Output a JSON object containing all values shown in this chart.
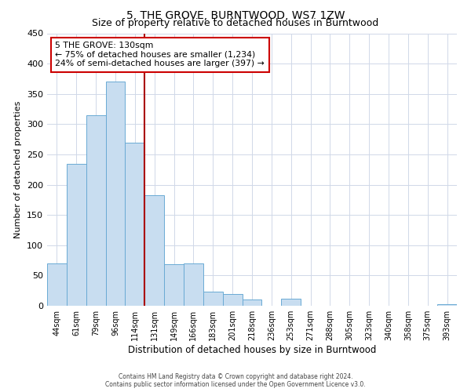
{
  "title": "5, THE GROVE, BURNTWOOD, WS7 1ZW",
  "subtitle": "Size of property relative to detached houses in Burntwood",
  "xlabel": "Distribution of detached houses by size in Burntwood",
  "ylabel": "Number of detached properties",
  "bin_labels": [
    "44sqm",
    "61sqm",
    "79sqm",
    "96sqm",
    "114sqm",
    "131sqm",
    "149sqm",
    "166sqm",
    "183sqm",
    "201sqm",
    "218sqm",
    "236sqm",
    "253sqm",
    "271sqm",
    "288sqm",
    "305sqm",
    "323sqm",
    "340sqm",
    "358sqm",
    "375sqm",
    "393sqm"
  ],
  "bar_values": [
    70,
    235,
    315,
    370,
    270,
    183,
    68,
    70,
    23,
    20,
    10,
    0,
    12,
    0,
    0,
    0,
    0,
    0,
    0,
    0,
    3
  ],
  "bar_color": "#c8ddf0",
  "bar_edge_color": "#6aaad4",
  "marker_line_index": 5,
  "marker_line_color": "#aa0000",
  "ylim": [
    0,
    450
  ],
  "yticks": [
    0,
    50,
    100,
    150,
    200,
    250,
    300,
    350,
    400,
    450
  ],
  "annotation_title": "5 THE GROVE: 130sqm",
  "annotation_line1": "← 75% of detached houses are smaller (1,234)",
  "annotation_line2": "24% of semi-detached houses are larger (397) →",
  "annotation_box_facecolor": "#ffffff",
  "annotation_box_edgecolor": "#cc0000",
  "footer_line1": "Contains HM Land Registry data © Crown copyright and database right 2024.",
  "footer_line2": "Contains public sector information licensed under the Open Government Licence v3.0.",
  "background_color": "#ffffff",
  "grid_color": "#d0d8e8",
  "title_fontsize": 10,
  "subtitle_fontsize": 9,
  "xlabel_fontsize": 8.5,
  "ylabel_fontsize": 8,
  "tick_fontsize": 7,
  "footer_fontsize": 5.5
}
